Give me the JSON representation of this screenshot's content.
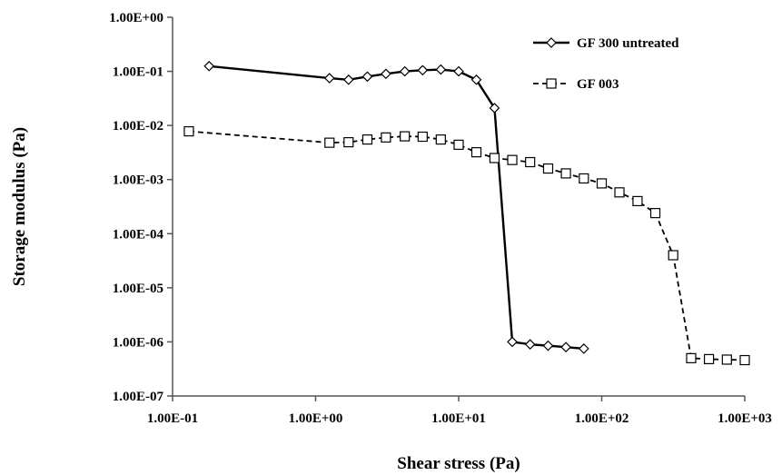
{
  "chart_data": {
    "type": "line",
    "title": "",
    "xlabel": "Shear stress (Pa)",
    "ylabel": "Storage modulus  (Pa)",
    "x_scale": "log",
    "y_scale": "log",
    "xlim": [
      0.1,
      1000
    ],
    "ylim": [
      1e-07,
      1
    ],
    "x_ticks": [
      0.1,
      1,
      10,
      100,
      1000
    ],
    "x_tick_labels": [
      "1.00E-01",
      "1.00E+00",
      "1.00E+01",
      "1.00E+02",
      "1.00E+03"
    ],
    "y_ticks": [
      1,
      0.1,
      0.01,
      0.001,
      0.0001,
      1e-05,
      1e-06,
      1e-07
    ],
    "y_tick_labels": [
      "1.00E+00",
      "1.00E-01",
      "1.00E-02",
      "1.00E-03",
      "1.00E-04",
      "1.00E-05",
      "1.00E-06",
      "1.00E-07"
    ],
    "grid": false,
    "legend_position": "top-right",
    "series": [
      {
        "name": "GF 300 untreated",
        "line_style": "solid",
        "marker": "diamond",
        "color": "#000000",
        "x": [
          0.18,
          1.25,
          1.7,
          2.3,
          3.1,
          4.2,
          5.6,
          7.5,
          10,
          13.3,
          17.8,
          23.7,
          31.6,
          42.2,
          56.2,
          75
        ],
        "y": [
          0.125,
          0.075,
          0.07,
          0.08,
          0.09,
          0.1,
          0.105,
          0.108,
          0.1,
          0.07,
          0.021,
          1e-06,
          9e-07,
          8.5e-07,
          8e-07,
          7.5e-07
        ]
      },
      {
        "name": "GF 003",
        "line_style": "dashed",
        "marker": "square",
        "color": "#000000",
        "x": [
          0.13,
          1.25,
          1.7,
          2.3,
          3.1,
          4.2,
          5.6,
          7.5,
          10,
          13.3,
          17.8,
          23.7,
          31.6,
          42.2,
          56.2,
          75,
          100,
          133,
          178,
          237,
          316,
          422,
          562,
          750,
          1000
        ],
        "y": [
          0.0078,
          0.0048,
          0.0049,
          0.0055,
          0.006,
          0.0063,
          0.0062,
          0.0055,
          0.0044,
          0.0032,
          0.0025,
          0.0023,
          0.0021,
          0.0016,
          0.0013,
          0.00105,
          0.00085,
          0.00058,
          0.0004,
          0.00024,
          4e-05,
          5e-07,
          4.8e-07,
          4.7e-07,
          4.6e-07
        ]
      }
    ]
  }
}
